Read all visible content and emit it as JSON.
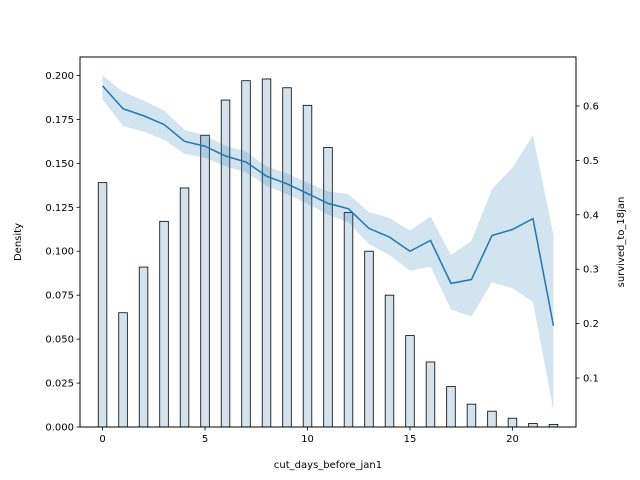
{
  "chart_data": {
    "type": "bar+line",
    "title": "",
    "xlabel": "cut_days_before_jan1",
    "ylabel": "Density",
    "y2label": "survived_to_18jan",
    "xlim": [
      -1.1,
      23.1
    ],
    "ylim": [
      0,
      0.2105
    ],
    "y2lim": [
      0.01,
      0.69
    ],
    "x_ticks": [
      0,
      5,
      10,
      15,
      20
    ],
    "y_ticks": [
      0.0,
      0.025,
      0.05,
      0.075,
      0.1,
      0.125,
      0.15,
      0.175,
      0.2
    ],
    "y_tick_labels": [
      "0.000",
      "0.025",
      "0.050",
      "0.075",
      "0.100",
      "0.125",
      "0.150",
      "0.175",
      "0.200"
    ],
    "y2_ticks": [
      0.1,
      0.2,
      0.3,
      0.4,
      0.5,
      0.6
    ],
    "y2_tick_labels": [
      "0.1",
      "0.2",
      "0.3",
      "0.4",
      "0.5",
      "0.6"
    ],
    "histogram": {
      "name": "Density",
      "bar_width": 0.42,
      "color": "#d3e2ed",
      "edgecolor": "#000000",
      "bars": [
        {
          "x": 0,
          "value": 0.139
        },
        {
          "x": 1,
          "value": 0.065
        },
        {
          "x": 2,
          "value": 0.091
        },
        {
          "x": 3,
          "value": 0.117
        },
        {
          "x": 4,
          "value": 0.136
        },
        {
          "x": 5,
          "value": 0.166
        },
        {
          "x": 6,
          "value": 0.186
        },
        {
          "x": 7,
          "value": 0.197
        },
        {
          "x": 8,
          "value": 0.198
        },
        {
          "x": 9,
          "value": 0.193
        },
        {
          "x": 10,
          "value": 0.183
        },
        {
          "x": 11,
          "value": 0.159
        },
        {
          "x": 12,
          "value": 0.122
        },
        {
          "x": 13,
          "value": 0.1
        },
        {
          "x": 14,
          "value": 0.075
        },
        {
          "x": 15,
          "value": 0.052
        },
        {
          "x": 16,
          "value": 0.037
        },
        {
          "x": 17,
          "value": 0.023
        },
        {
          "x": 18,
          "value": 0.013
        },
        {
          "x": 19,
          "value": 0.009
        },
        {
          "x": 20,
          "value": 0.005
        },
        {
          "x": 21,
          "value": 0.002
        },
        {
          "x": 22,
          "value": 0.0015
        }
      ]
    },
    "line": {
      "name": "survived_to_18jan",
      "color": "#1f77b4",
      "band_color": "#1f77b4",
      "points": [
        {
          "x": 0,
          "y": 0.637,
          "lo": 0.612,
          "hi": 0.656
        },
        {
          "x": 1,
          "y": 0.595,
          "lo": 0.563,
          "hi": 0.626
        },
        {
          "x": 2,
          "y": 0.582,
          "lo": 0.553,
          "hi": 0.61
        },
        {
          "x": 3,
          "y": 0.566,
          "lo": 0.538,
          "hi": 0.592
        },
        {
          "x": 4,
          "y": 0.535,
          "lo": 0.512,
          "hi": 0.556
        },
        {
          "x": 5,
          "y": 0.526,
          "lo": 0.505,
          "hi": 0.546
        },
        {
          "x": 6,
          "y": 0.508,
          "lo": 0.489,
          "hi": 0.527
        },
        {
          "x": 7,
          "y": 0.497,
          "lo": 0.478,
          "hi": 0.516
        },
        {
          "x": 8,
          "y": 0.471,
          "lo": 0.453,
          "hi": 0.489
        },
        {
          "x": 9,
          "y": 0.457,
          "lo": 0.438,
          "hi": 0.476
        },
        {
          "x": 10,
          "y": 0.439,
          "lo": 0.42,
          "hi": 0.459
        },
        {
          "x": 11,
          "y": 0.421,
          "lo": 0.4,
          "hi": 0.443
        },
        {
          "x": 12,
          "y": 0.411,
          "lo": 0.386,
          "hi": 0.438
        },
        {
          "x": 13,
          "y": 0.375,
          "lo": 0.346,
          "hi": 0.405
        },
        {
          "x": 14,
          "y": 0.359,
          "lo": 0.326,
          "hi": 0.394
        },
        {
          "x": 15,
          "y": 0.333,
          "lo": 0.297,
          "hi": 0.371
        },
        {
          "x": 16,
          "y": 0.353,
          "lo": 0.305,
          "hi": 0.397
        },
        {
          "x": 17,
          "y": 0.274,
          "lo": 0.226,
          "hi": 0.326
        },
        {
          "x": 18,
          "y": 0.281,
          "lo": 0.213,
          "hi": 0.352
        },
        {
          "x": 19,
          "y": 0.362,
          "lo": 0.276,
          "hi": 0.447
        },
        {
          "x": 20,
          "y": 0.373,
          "lo": 0.265,
          "hi": 0.487
        },
        {
          "x": 21,
          "y": 0.393,
          "lo": 0.24,
          "hi": 0.546
        },
        {
          "x": 22,
          "y": 0.196,
          "lo": 0.04,
          "hi": 0.363
        }
      ]
    }
  }
}
